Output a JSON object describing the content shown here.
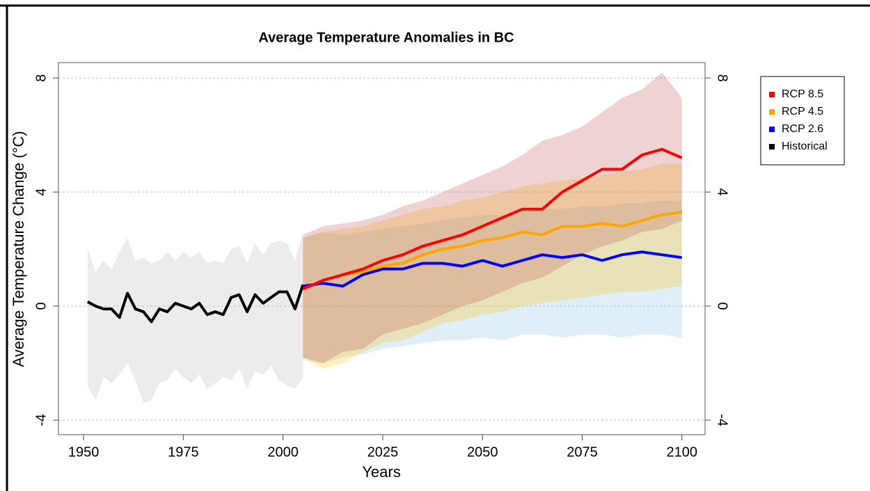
{
  "chart_data": {
    "type": "line",
    "title": "Average Temperature Anomalies in BC",
    "x_label": "Years",
    "y_label": "Average Temperature Change (°C)",
    "xlim": [
      1943.7,
      2105.8
    ],
    "ylim": [
      -4.51,
      8.54
    ],
    "xticks": [
      1950,
      1975,
      2000,
      2025,
      2050,
      2075,
      2100
    ],
    "yticks": [
      -4,
      0,
      4,
      8
    ],
    "grid": true,
    "legend": "right",
    "series": [
      {
        "name": "RCP 8.5",
        "color": "#ff0000",
        "band_color": "rgba(190,80,80,0.25)",
        "x": [
          2005,
          2010,
          2015,
          2020,
          2025,
          2030,
          2035,
          2040,
          2045,
          2050,
          2055,
          2060,
          2065,
          2070,
          2075,
          2080,
          2085,
          2090,
          2095,
          2100
        ],
        "values": [
          0.6,
          0.9,
          1.1,
          1.3,
          1.6,
          1.8,
          2.1,
          2.3,
          2.5,
          2.8,
          3.1,
          3.4,
          3.4,
          4.0,
          4.4,
          4.8,
          4.8,
          5.3,
          5.5,
          5.2
        ],
        "upper": [
          2.5,
          2.8,
          2.9,
          3.0,
          3.2,
          3.5,
          3.7,
          4.0,
          4.3,
          4.6,
          4.9,
          5.3,
          5.8,
          6.0,
          6.3,
          6.8,
          7.3,
          7.6,
          8.2,
          7.3
        ],
        "lower": [
          -1.8,
          -2.0,
          -1.6,
          -1.5,
          -1.0,
          -0.8,
          -0.6,
          -0.3,
          0.0,
          0.2,
          0.5,
          0.8,
          1.0,
          1.4,
          1.8,
          2.1,
          2.3,
          2.6,
          2.7,
          3.0
        ]
      },
      {
        "name": "RCP 4.5",
        "color": "#ffa500",
        "band_color": "rgba(255,200,40,0.3)",
        "x": [
          2005,
          2010,
          2015,
          2020,
          2025,
          2030,
          2035,
          2040,
          2045,
          2050,
          2055,
          2060,
          2065,
          2070,
          2075,
          2080,
          2085,
          2090,
          2095,
          2100
        ],
        "values": [
          0.6,
          0.9,
          1.1,
          1.2,
          1.4,
          1.5,
          1.8,
          2.0,
          2.1,
          2.3,
          2.4,
          2.6,
          2.5,
          2.8,
          2.8,
          2.9,
          2.8,
          3.0,
          3.2,
          3.3
        ],
        "upper": [
          2.4,
          2.6,
          2.7,
          2.8,
          3.0,
          3.2,
          3.4,
          3.5,
          3.7,
          3.8,
          4.0,
          4.2,
          4.3,
          4.4,
          4.5,
          4.6,
          4.7,
          4.8,
          5.0,
          5.0
        ],
        "lower": [
          -1.8,
          -2.2,
          -2.0,
          -1.6,
          -1.3,
          -1.2,
          -0.9,
          -0.6,
          -0.5,
          -0.3,
          -0.2,
          0.0,
          0.1,
          0.2,
          0.3,
          0.4,
          0.5,
          0.5,
          0.6,
          0.7
        ]
      },
      {
        "name": "RCP 2.6",
        "color": "#0000ff",
        "band_color": "rgba(150,200,230,0.3)",
        "x": [
          2005,
          2010,
          2015,
          2020,
          2025,
          2030,
          2035,
          2040,
          2045,
          2050,
          2055,
          2060,
          2065,
          2070,
          2075,
          2080,
          2085,
          2090,
          2095,
          2100
        ],
        "values": [
          0.7,
          0.8,
          0.7,
          1.1,
          1.3,
          1.3,
          1.5,
          1.5,
          1.4,
          1.6,
          1.4,
          1.6,
          1.8,
          1.7,
          1.8,
          1.6,
          1.8,
          1.9,
          1.8,
          1.7
        ],
        "upper": [
          2.4,
          2.6,
          2.5,
          2.6,
          2.7,
          2.8,
          2.9,
          3.0,
          3.1,
          3.2,
          3.2,
          3.3,
          3.4,
          3.4,
          3.5,
          3.5,
          3.6,
          3.6,
          3.7,
          3.7
        ],
        "lower": [
          -1.9,
          -2.0,
          -1.8,
          -1.7,
          -1.5,
          -1.4,
          -1.3,
          -1.2,
          -1.2,
          -1.1,
          -1.2,
          -1.0,
          -1.0,
          -1.1,
          -1.0,
          -1.0,
          -1.1,
          -1.0,
          -1.0,
          -1.1
        ]
      },
      {
        "name": "Historical",
        "color": "#000000",
        "band_color": "rgba(200,200,200,0.35)",
        "x": [
          1951,
          1953,
          1955,
          1957,
          1959,
          1961,
          1963,
          1965,
          1967,
          1969,
          1971,
          1973,
          1975,
          1977,
          1979,
          1981,
          1983,
          1985,
          1987,
          1989,
          1991,
          1993,
          1995,
          1997,
          1999,
          2001,
          2003,
          2005
        ],
        "values": [
          0.15,
          0.0,
          -0.1,
          -0.1,
          -0.4,
          0.45,
          -0.1,
          -0.2,
          -0.55,
          -0.1,
          -0.2,
          0.1,
          0.0,
          -0.1,
          0.1,
          -0.3,
          -0.2,
          -0.3,
          0.3,
          0.4,
          -0.2,
          0.4,
          0.1,
          0.3,
          0.5,
          0.5,
          -0.1,
          0.75
        ],
        "upper": [
          2.0,
          1.2,
          1.6,
          1.3,
          1.9,
          2.4,
          1.6,
          1.7,
          1.5,
          1.6,
          1.9,
          1.6,
          1.9,
          1.7,
          1.9,
          1.5,
          1.6,
          1.5,
          2.0,
          2.1,
          1.5,
          2.2,
          1.8,
          2.2,
          2.3,
          2.2,
          1.6,
          2.6
        ],
        "lower": [
          -2.8,
          -3.3,
          -2.5,
          -2.7,
          -2.4,
          -2.0,
          -2.6,
          -3.4,
          -3.3,
          -2.7,
          -2.6,
          -2.2,
          -2.5,
          -2.7,
          -2.4,
          -2.9,
          -2.7,
          -2.5,
          -2.6,
          -2.2,
          -2.9,
          -2.3,
          -2.4,
          -2.1,
          -2.6,
          -2.8,
          -2.9,
          -2.5
        ]
      }
    ]
  }
}
